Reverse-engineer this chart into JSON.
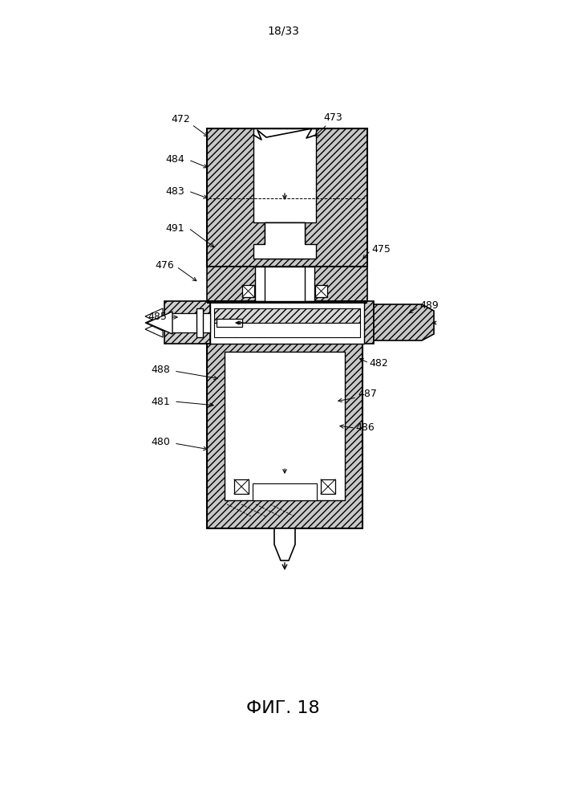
{
  "page_label": "18/33",
  "fig_label": "ФИГ. 18",
  "background_color": "#ffffff"
}
